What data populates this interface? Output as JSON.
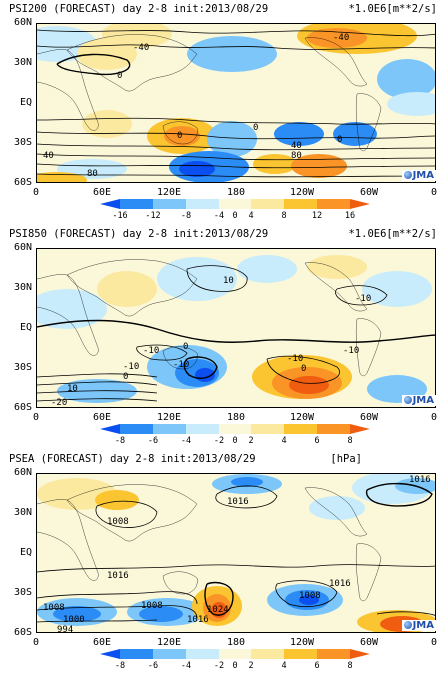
{
  "colors": {
    "neg3": "#0c4ff0",
    "neg2": "#2c8cf6",
    "neg1": "#7cc6fa",
    "neg0": "#c8ecfb",
    "neutral": "#fbf7d9",
    "pos0": "#fbe9a0",
    "pos1": "#fbc431",
    "pos2": "#fa9426",
    "pos3": "#f05c10",
    "land": "#000000"
  },
  "x_axis_labels": [
    "0",
    "60E",
    "120E",
    "180",
    "120W",
    "60W",
    "0"
  ],
  "y_axis_labels": [
    "60N",
    "30N",
    "EQ",
    "30S",
    "60S"
  ],
  "panels": [
    {
      "title": "PSI200 (FORECAST) day 2-8 init:2013/08/29",
      "units": "*1.0E6[m**2/s]",
      "colorbar_ticks": [
        "-16",
        "-12",
        "-8",
        "-4",
        "0",
        "4",
        "8",
        "12",
        "16"
      ],
      "contour_labels": [
        "-40",
        "-40",
        "0",
        "0",
        "0",
        "40",
        "80",
        "40",
        "80",
        "0"
      ],
      "logo": "JMA"
    },
    {
      "title": "PSI850 (FORECAST) day 2-8 init:2013/08/29",
      "units": "*1.0E6[m**2/s]",
      "colorbar_ticks": [
        "-8",
        "-6",
        "-4",
        "-2",
        "0",
        "2",
        "4",
        "6",
        "8"
      ],
      "contour_labels": [
        "10",
        "-10",
        "-10",
        "0",
        "-10",
        "-10",
        "0",
        "10",
        "-20",
        "0",
        "-10",
        "-10"
      ],
      "logo": "JMA"
    },
    {
      "title": "PSEA (FORECAST) day 2-8 init:2013/08/29",
      "units": "[hPa]",
      "colorbar_ticks": [
        "-8",
        "-6",
        "-4",
        "-2",
        "0",
        "2",
        "4",
        "6",
        "8"
      ],
      "contour_labels": [
        "1008",
        "1016",
        "1016",
        "1016",
        "1016",
        "1008",
        "1000",
        "994",
        "1008",
        "1024",
        "1016",
        "1008"
      ],
      "logo": "JMA"
    }
  ]
}
